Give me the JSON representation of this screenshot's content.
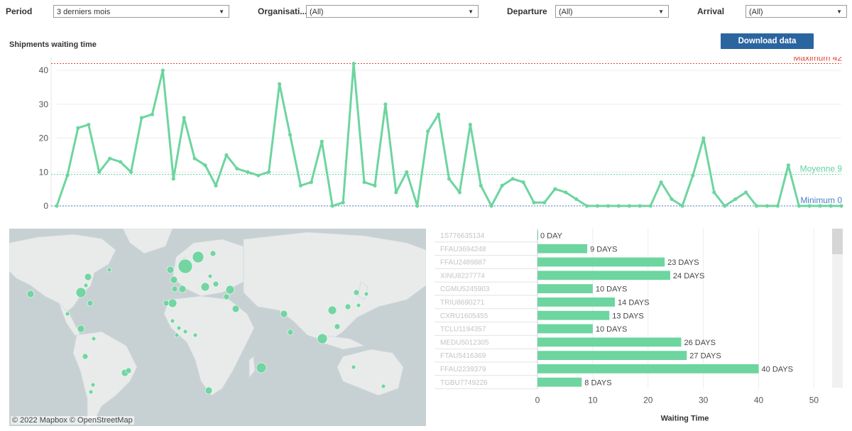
{
  "filters": {
    "period": {
      "label": "Period",
      "value": "3 derniers mois"
    },
    "organisation": {
      "label": "Organisati...",
      "value": "(All)"
    },
    "departure": {
      "label": "Departure",
      "value": "(All)"
    },
    "arrival": {
      "label": "Arrival",
      "value": "(All)"
    }
  },
  "download_label": "Download data",
  "chart_title": "Shipments waiting time",
  "chart_data": [
    {
      "type": "line",
      "title": "Shipments waiting time",
      "ylim": [
        0,
        44
      ],
      "yticks": [
        0,
        10,
        20,
        30,
        40
      ],
      "values": [
        0,
        9,
        23,
        24,
        10,
        14,
        13,
        10,
        26,
        27,
        40,
        8,
        26,
        14,
        12,
        6,
        15,
        11,
        10,
        9,
        10,
        36,
        21,
        6,
        7,
        19,
        0,
        1,
        42,
        7,
        6,
        30,
        4,
        10,
        0,
        22,
        27,
        8,
        4,
        24,
        6,
        0,
        6,
        8,
        7,
        1,
        1,
        5,
        4,
        2,
        0,
        0,
        0,
        0,
        0,
        0,
        0,
        7,
        2,
        0,
        9,
        20,
        4,
        0,
        2,
        4,
        0,
        0,
        0,
        12,
        0,
        0,
        0,
        0,
        0
      ],
      "reference_lines": [
        {
          "label": "Maximum 42",
          "value": 42,
          "color": "#e0453a"
        },
        {
          "label": "Moyenne 9",
          "value": 9.3,
          "color": "#5fd3a0"
        },
        {
          "label": "Minimum 0",
          "value": 0,
          "color": "#4a7fc1"
        }
      ],
      "color": "#6dd59f"
    },
    {
      "type": "bar",
      "orientation": "horizontal",
      "xlabel": "Waiting Time",
      "xlim": [
        0,
        52
      ],
      "xticks": [
        0,
        10,
        20,
        30,
        40,
        50
      ],
      "categories": [
        "1S776635134",
        "FFAU3694248",
        "FFAU2489887",
        "XINU8227774",
        "CGMU5245903",
        "TRIU8690271",
        "CXRU1605455",
        "TCLU1194357",
        "MEDU5012305",
        "FTAU5416369",
        "FFAU2239379",
        "TGBU7749226"
      ],
      "values": [
        0,
        9,
        23,
        24,
        10,
        14,
        13,
        10,
        26,
        27,
        40,
        8
      ],
      "value_labels": [
        "0 DAY",
        "9 DAYS",
        "23 DAYS",
        "24 DAYS",
        "10 DAYS",
        "14 DAYS",
        "13 DAYS",
        "10 DAYS",
        "26 DAYS",
        "27 DAYS",
        "40 DAYS",
        "8 DAYS"
      ],
      "color": "#6dd59f"
    }
  ],
  "map": {
    "attribution": "© 2022 Mapbox  © OpenStreetMap",
    "marker_color": "#6dd59f"
  }
}
